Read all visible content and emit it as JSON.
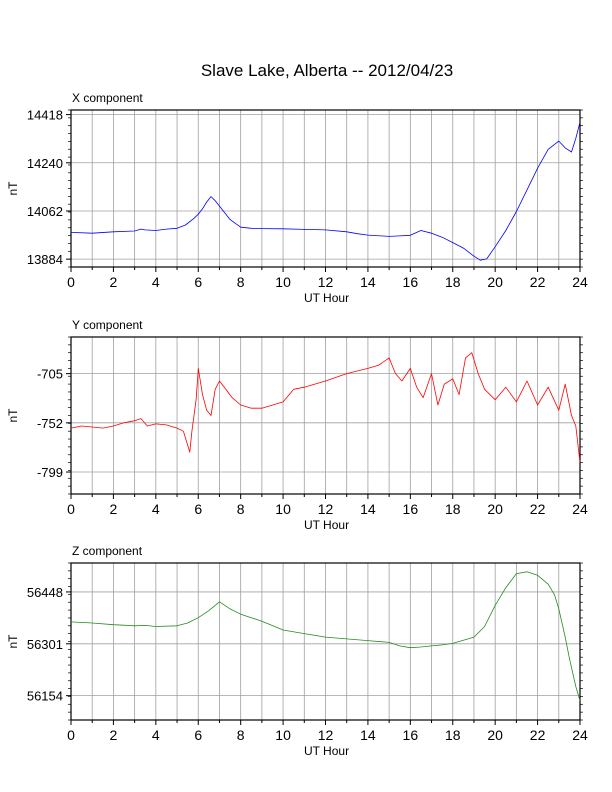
{
  "title": "Slave Lake, Alberta -- 2012/04/23",
  "chart_data": [
    {
      "type": "line",
      "panel_label": "X component",
      "xlabel": "UT Hour",
      "ylabel": "nT",
      "xlim": [
        0,
        24
      ],
      "ylim": [
        13855,
        14435
      ],
      "x_ticks": [
        "0",
        "2",
        "4",
        "6",
        "8",
        "10",
        "12",
        "14",
        "16",
        "18",
        "20",
        "22",
        "24"
      ],
      "y_ticks": [
        "13884",
        "14062",
        "14240",
        "14418"
      ],
      "y_tick_values": [
        13884,
        14062,
        14240,
        14418
      ],
      "grid": true,
      "series": [
        {
          "color": "#0000ff",
          "x": [
            0,
            1,
            2,
            3,
            3.3,
            3.5,
            4,
            4.5,
            5,
            5.4,
            5.8,
            6,
            6.2,
            6.4,
            6.6,
            6.8,
            7,
            7.2,
            7.5,
            8,
            8.5,
            9,
            10,
            11,
            12,
            13,
            13.5,
            14,
            15,
            15.5,
            16,
            16.5,
            17,
            17.5,
            18,
            18.5,
            19,
            19.3,
            19.6,
            20,
            20.5,
            21,
            21.5,
            22,
            22.5,
            23,
            23.3,
            23.6,
            23.8,
            24
          ],
          "values": [
            13983,
            13980,
            13985,
            13988,
            13995,
            13992,
            13990,
            13995,
            13998,
            14010,
            14035,
            14050,
            14070,
            14095,
            14115,
            14100,
            14080,
            14060,
            14030,
            14002,
            13998,
            13997,
            13996,
            13994,
            13992,
            13985,
            13978,
            13973,
            13968,
            13970,
            13972,
            13990,
            13980,
            13965,
            13945,
            13925,
            13895,
            13880,
            13885,
            13930,
            13990,
            14060,
            14140,
            14220,
            14290,
            14320,
            14295,
            14280,
            14330,
            14390
          ]
        }
      ]
    },
    {
      "type": "line",
      "panel_label": "Y component",
      "xlabel": "UT Hour",
      "ylabel": "nT",
      "xlim": [
        0,
        24
      ],
      "ylim": [
        -820,
        -670
      ],
      "x_ticks": [
        "0",
        "2",
        "4",
        "6",
        "8",
        "10",
        "12",
        "14",
        "16",
        "18",
        "20",
        "22",
        "24"
      ],
      "y_ticks": [
        "-705",
        "-752",
        "-799"
      ],
      "y_tick_values": [
        -705,
        -752,
        -799
      ],
      "grid": true,
      "series": [
        {
          "color": "#ff0000",
          "x": [
            0,
            0.5,
            1,
            1.5,
            2,
            2.5,
            3,
            3.3,
            3.6,
            4,
            4.5,
            5,
            5.3,
            5.6,
            5.7,
            5.9,
            6,
            6.2,
            6.4,
            6.6,
            6.8,
            7,
            7.3,
            7.6,
            8,
            8.5,
            9,
            10,
            10.5,
            11,
            12,
            13,
            14,
            14.5,
            15,
            15.3,
            15.6,
            16,
            16.3,
            16.6,
            17,
            17.3,
            17.6,
            18,
            18.3,
            18.6,
            18.9,
            19.2,
            19.5,
            20,
            20.5,
            21,
            21.5,
            22,
            22.5,
            23,
            23.3,
            23.6,
            23.8,
            24
          ],
          "values": [
            -757,
            -755,
            -756,
            -757,
            -755,
            -752,
            -750,
            -748,
            -755,
            -753,
            -754,
            -757,
            -760,
            -780,
            -760,
            -730,
            -700,
            -725,
            -740,
            -745,
            -720,
            -712,
            -720,
            -728,
            -735,
            -738,
            -738,
            -732,
            -720,
            -718,
            -712,
            -705,
            -700,
            -697,
            -690,
            -705,
            -712,
            -700,
            -718,
            -728,
            -705,
            -735,
            -715,
            -710,
            -725,
            -690,
            -685,
            -705,
            -720,
            -730,
            -718,
            -732,
            -712,
            -735,
            -718,
            -740,
            -715,
            -745,
            -755,
            -790
          ]
        }
      ]
    },
    {
      "type": "line",
      "panel_label": "Z component",
      "xlabel": "UT Hour",
      "ylabel": "nT",
      "xlim": [
        0,
        24
      ],
      "ylim": [
        56085,
        56530
      ],
      "x_ticks": [
        "0",
        "2",
        "4",
        "6",
        "8",
        "10",
        "12",
        "14",
        "16",
        "18",
        "20",
        "22",
        "24"
      ],
      "y_ticks": [
        "56154",
        "56301",
        "56448"
      ],
      "y_tick_values": [
        56154,
        56301,
        56448
      ],
      "grid": true,
      "series": [
        {
          "color": "#228b22",
          "x": [
            0,
            1,
            2,
            3,
            3.5,
            4,
            5,
            5.5,
            6,
            6.5,
            7,
            7.5,
            8,
            9,
            10,
            11,
            12,
            13,
            14,
            15,
            15.5,
            16,
            16.5,
            17,
            17.5,
            18,
            19,
            19.5,
            20,
            20.5,
            21,
            21.5,
            22,
            22.5,
            22.8,
            23,
            23.3,
            23.5,
            23.8,
            24
          ],
          "values": [
            56363,
            56360,
            56355,
            56352,
            56353,
            56350,
            56352,
            56360,
            56375,
            56395,
            56420,
            56400,
            56385,
            56365,
            56340,
            56330,
            56320,
            56315,
            56310,
            56305,
            56295,
            56290,
            56292,
            56295,
            56298,
            56302,
            56320,
            56350,
            56410,
            56460,
            56500,
            56505,
            56495,
            56470,
            56440,
            56400,
            56320,
            56260,
            56180,
            56140
          ]
        }
      ]
    }
  ]
}
